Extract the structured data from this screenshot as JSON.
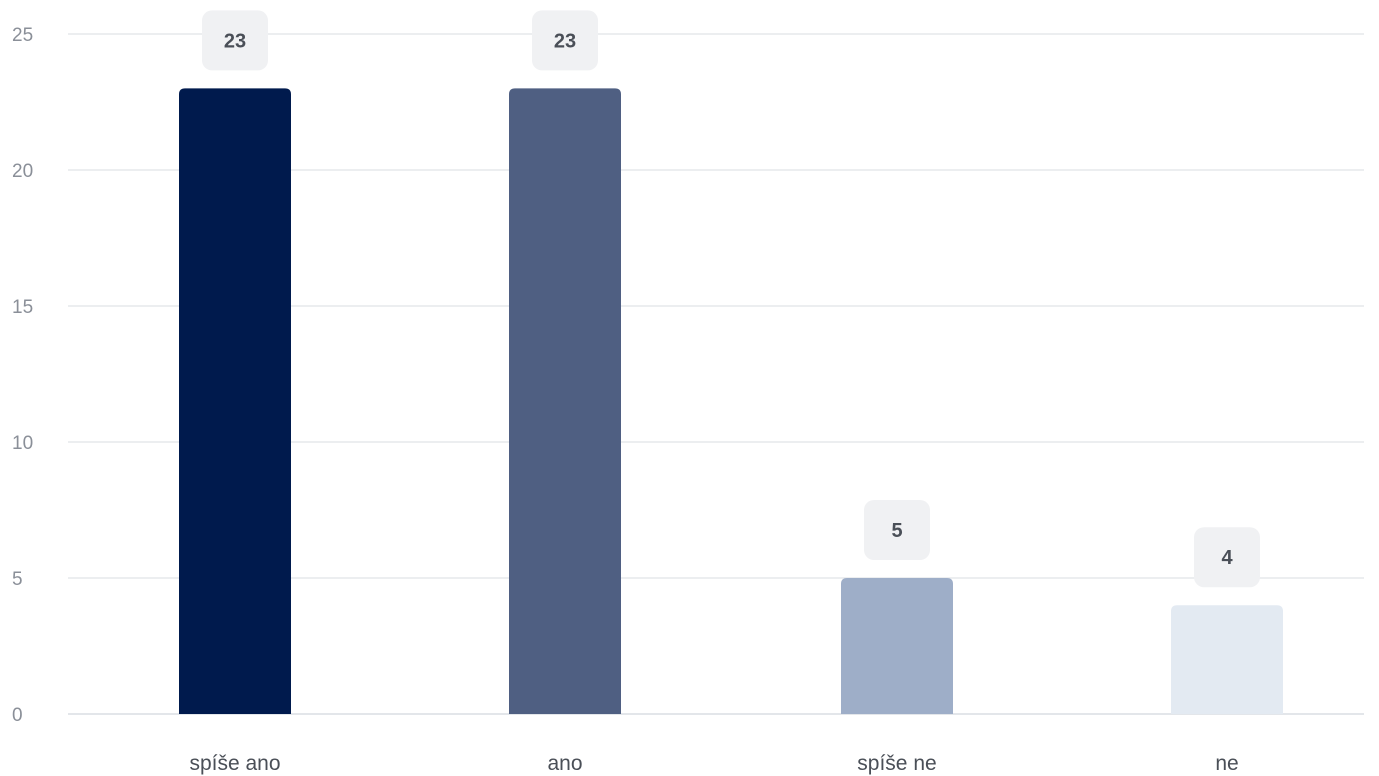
{
  "chart_data": {
    "type": "bar",
    "categories": [
      "spíše ano",
      "ano",
      "spíše ne",
      "ne"
    ],
    "values": [
      23,
      23,
      5,
      4
    ],
    "colors": [
      "#001a4d",
      "#4f5f82",
      "#9eaec8",
      "#e3eaf2"
    ],
    "title": "",
    "xlabel": "",
    "ylabel": "",
    "ylim": [
      0,
      25
    ],
    "yticks": [
      0,
      5,
      10,
      15,
      20,
      25
    ],
    "grid": true,
    "data_labels": true
  }
}
